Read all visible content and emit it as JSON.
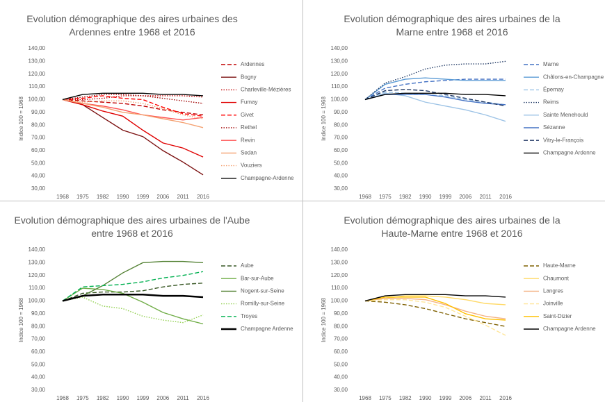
{
  "chart_data": [
    {
      "type": "line",
      "title": "Evolution démographique des aires urbaines des Ardennes entre 1968 et 2016",
      "y_label": "Indice 100 = 1968",
      "categories": [
        "1968",
        "1975",
        "1982",
        "1990",
        "1999",
        "2006",
        "2011",
        "2016"
      ],
      "ylim": [
        30,
        140
      ],
      "yticks": [
        {
          "value": 30,
          "label": "30,00"
        },
        {
          "value": 40,
          "label": "40,00"
        },
        {
          "value": 50,
          "label": "50,00"
        },
        {
          "value": 60,
          "label": "60,00"
        },
        {
          "value": 70,
          "label": "70,00"
        },
        {
          "value": 80,
          "label": "80,00"
        },
        {
          "value": 90,
          "label": "90,00"
        },
        {
          "value": 100,
          "label": "100,00"
        },
        {
          "value": 110,
          "label": "110,00"
        },
        {
          "value": 120,
          "label": "120,00"
        },
        {
          "value": 130,
          "label": "130,00"
        },
        {
          "value": 140,
          "label": "140,00"
        }
      ],
      "series": [
        {
          "name": "Ardennes",
          "color": "#c00000",
          "style": "dashed",
          "values": [
            100,
            99,
            98,
            97,
            95,
            92,
            90,
            88
          ]
        },
        {
          "name": "Bogny",
          "color": "#7b1010",
          "style": "solid",
          "values": [
            100,
            96,
            86,
            76,
            71,
            60,
            51,
            41
          ]
        },
        {
          "name": "Charleville-Mézières",
          "color": "#c00000",
          "style": "dotted",
          "values": [
            100,
            100,
            101,
            103,
            103,
            103,
            103,
            102
          ]
        },
        {
          "name": "Fumay",
          "color": "#e00000",
          "style": "solid",
          "values": [
            100,
            96,
            91,
            87,
            76,
            66,
            62,
            55
          ]
        },
        {
          "name": "Givet",
          "color": "#ff0000",
          "style": "dashed",
          "values": [
            100,
            101,
            103,
            101,
            100,
            94,
            89,
            87
          ]
        },
        {
          "name": "Rethel",
          "color": "#a00000",
          "style": "dotted",
          "values": [
            100,
            102,
            104,
            104,
            103,
            101,
            99,
            97
          ]
        },
        {
          "name": "Revin",
          "color": "#ff5050",
          "style": "solid",
          "values": [
            100,
            97,
            95,
            92,
            88,
            86,
            84,
            86
          ]
        },
        {
          "name": "Sedan",
          "color": "#f4a070",
          "style": "solid",
          "values": [
            100,
            97,
            94,
            90,
            88,
            85,
            82,
            78
          ]
        },
        {
          "name": "Vouziers",
          "color": "#f4a070",
          "style": "dotted",
          "values": [
            100,
            98,
            99,
            99,
            97,
            93,
            88,
            85
          ]
        },
        {
          "name": "Champagne-Ardenne",
          "color": "#000000",
          "style": "solid",
          "values": [
            100,
            104,
            105,
            105,
            105,
            104,
            104,
            103
          ]
        }
      ]
    },
    {
      "type": "line",
      "title": "Evolution démographique des aires urbaines de la Marne entre 1968 et 2016",
      "y_label": "Indice 100 = 1968",
      "categories": [
        "1968",
        "1975",
        "1982",
        "1990",
        "1999",
        "2006",
        "2011",
        "2016"
      ],
      "ylim": [
        30,
        140
      ],
      "yticks": [
        {
          "value": 30,
          "label": "30,00"
        },
        {
          "value": 40,
          "label": "40,00"
        },
        {
          "value": 50,
          "label": "50,00"
        },
        {
          "value": 60,
          "label": "60,00"
        },
        {
          "value": 70,
          "label": "70,00"
        },
        {
          "value": 80,
          "label": "80,00"
        },
        {
          "value": 90,
          "label": "90,00"
        },
        {
          "value": 100,
          "label": "100,00"
        },
        {
          "value": 110,
          "label": "110,00"
        },
        {
          "value": 120,
          "label": "120,00"
        },
        {
          "value": 130,
          "label": "130,00"
        },
        {
          "value": 140,
          "label": "140,00"
        }
      ],
      "series": [
        {
          "name": "Marne",
          "color": "#4472c4",
          "style": "dashed",
          "values": [
            100,
            109,
            112,
            114,
            115,
            116,
            116,
            116
          ]
        },
        {
          "name": "Châlons-en-Champagne",
          "color": "#5b9bd5",
          "style": "solid",
          "values": [
            100,
            112,
            116,
            117,
            116,
            115,
            115,
            115
          ]
        },
        {
          "name": "Épernay",
          "color": "#9dc3e6",
          "style": "dashed",
          "values": [
            100,
            106,
            105,
            104,
            103,
            100,
            98,
            96
          ]
        },
        {
          "name": "Reims",
          "color": "#1f3864",
          "style": "dotted",
          "values": [
            100,
            113,
            118,
            124,
            127,
            128,
            128,
            130
          ]
        },
        {
          "name": "Sainte Menehould",
          "color": "#9dc3e6",
          "style": "solid",
          "values": [
            100,
            105,
            103,
            98,
            95,
            92,
            88,
            83
          ]
        },
        {
          "name": "Sézanne",
          "color": "#4472c4",
          "style": "solid",
          "values": [
            100,
            104,
            104,
            104,
            102,
            99,
            97,
            96
          ]
        },
        {
          "name": "Vitry-le-François",
          "color": "#203864",
          "style": "dashed",
          "values": [
            100,
            107,
            108,
            107,
            104,
            101,
            98,
            95
          ]
        },
        {
          "name": "Champagne Ardenne",
          "color": "#000000",
          "style": "solid",
          "values": [
            100,
            104,
            105,
            105,
            105,
            104,
            104,
            103
          ]
        }
      ]
    },
    {
      "type": "line",
      "title": "Evolution démographique des aires urbaines de l'Aube entre 1968 et 2016",
      "y_label": "Indice 100 = 1968",
      "categories": [
        "1968",
        "1975",
        "1982",
        "1990",
        "1999",
        "2006",
        "2011",
        "2016"
      ],
      "ylim": [
        30,
        140
      ],
      "yticks": [
        {
          "value": 30,
          "label": "30,00"
        },
        {
          "value": 40,
          "label": "40,00"
        },
        {
          "value": 50,
          "label": "50,00"
        },
        {
          "value": 60,
          "label": "60,00"
        },
        {
          "value": 70,
          "label": "70,00"
        },
        {
          "value": 80,
          "label": "80,00"
        },
        {
          "value": 90,
          "label": "90,00"
        },
        {
          "value": 100,
          "label": "100,00"
        },
        {
          "value": 110,
          "label": "110,00"
        },
        {
          "value": 120,
          "label": "120,00"
        },
        {
          "value": 130,
          "label": "130,00"
        },
        {
          "value": 140,
          "label": "140,00"
        }
      ],
      "series": [
        {
          "name": "Aube",
          "color": "#375623",
          "style": "dashed",
          "values": [
            100,
            106,
            107,
            107,
            108,
            111,
            113,
            114
          ]
        },
        {
          "name": "Bar-sur-Aube",
          "color": "#70ad47",
          "style": "solid",
          "values": [
            100,
            110,
            109,
            106,
            99,
            91,
            86,
            82
          ]
        },
        {
          "name": "Nogent-sur-Seine",
          "color": "#548235",
          "style": "solid",
          "values": [
            100,
            104,
            112,
            122,
            130,
            131,
            131,
            130
          ]
        },
        {
          "name": "Romilly-sur-Seine",
          "color": "#92d050",
          "style": "dotted",
          "values": [
            100,
            103,
            96,
            94,
            88,
            85,
            83,
            89
          ]
        },
        {
          "name": "Troyes",
          "color": "#00b050",
          "style": "dashed",
          "values": [
            100,
            111,
            112,
            113,
            115,
            118,
            120,
            123
          ]
        },
        {
          "name": "Champagne Ardenne",
          "color": "#000000",
          "style": "thick",
          "values": [
            100,
            104,
            105,
            105,
            105,
            104,
            104,
            103
          ]
        }
      ]
    },
    {
      "type": "line",
      "title": "Evolution démographique des aires urbaines de la Haute-Marne entre 1968 et 2016",
      "y_label": "Indice 100 = 1968",
      "categories": [
        "1968",
        "1975",
        "1982",
        "1990",
        "1999",
        "2006",
        "2011",
        "2016"
      ],
      "ylim": [
        30,
        140
      ],
      "yticks": [
        {
          "value": 30,
          "label": "30,00"
        },
        {
          "value": 40,
          "label": "40,00"
        },
        {
          "value": 50,
          "label": "50,00"
        },
        {
          "value": 60,
          "label": "60,00"
        },
        {
          "value": 70,
          "label": "70,00"
        },
        {
          "value": 80,
          "label": "80,00"
        },
        {
          "value": 90,
          "label": "90,00"
        },
        {
          "value": 100,
          "label": "100,00"
        },
        {
          "value": 110,
          "label": "110,00"
        },
        {
          "value": 120,
          "label": "120,00"
        },
        {
          "value": 130,
          "label": "130,00"
        },
        {
          "value": 140,
          "label": "140,00"
        }
      ],
      "series": [
        {
          "name": "Haute-Marne",
          "color": "#7f6000",
          "style": "dashed",
          "values": [
            100,
            99,
            97,
            94,
            90,
            86,
            83,
            80
          ]
        },
        {
          "name": "Chaumont",
          "color": "#ffd966",
          "style": "solid",
          "values": [
            100,
            102,
            104,
            104,
            103,
            101,
            98,
            97
          ]
        },
        {
          "name": "Langres",
          "color": "#f4b183",
          "style": "solid",
          "values": [
            100,
            102,
            102,
            101,
            97,
            92,
            88,
            86
          ]
        },
        {
          "name": "Joinville",
          "color": "#ffe699",
          "style": "dashed",
          "values": [
            100,
            101,
            101,
            99,
            95,
            88,
            81,
            73
          ]
        },
        {
          "name": "Saint-Dizier",
          "color": "#ffc000",
          "style": "solid",
          "values": [
            100,
            103,
            103,
            103,
            98,
            90,
            86,
            85
          ]
        },
        {
          "name": "Champagne Ardenne",
          "color": "#000000",
          "style": "solid",
          "values": [
            100,
            104,
            105,
            105,
            105,
            104,
            104,
            103
          ]
        }
      ]
    }
  ]
}
